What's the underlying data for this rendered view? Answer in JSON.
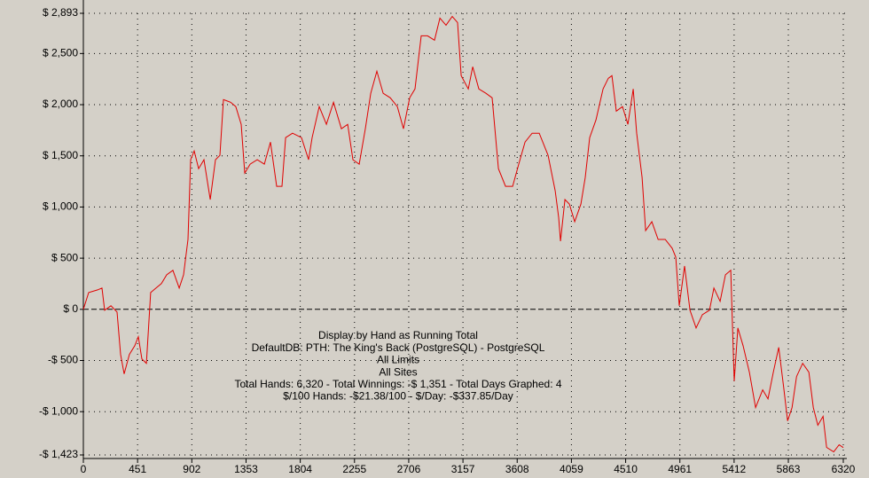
{
  "chart_data": {
    "type": "line",
    "color": "#e00000",
    "grid": true,
    "annotations": [
      "Display by Hand as Running Total",
      "DefaultDB: PTH: The King's Back (PostgreSQL) - PostgreSQL",
      "All Limits",
      "All Sites",
      "Total Hands: 6,320 - Total Winnings: -$ 1,351 - Total Days Graphed: 4",
      "$/100 Hands: -$21.38/100 - $/Day: -$337.85/Day"
    ],
    "xlim": [
      0,
      6320
    ],
    "xticks": [
      0,
      451,
      902,
      1353,
      1804,
      2255,
      2706,
      3157,
      3608,
      4059,
      4510,
      4961,
      5412,
      5863,
      6320
    ],
    "ylim": [
      -1423,
      2893
    ],
    "yticks": [
      {
        "value": -1423,
        "label": "-$ 1,423"
      },
      {
        "value": -1000,
        "label": "-$ 1,000"
      },
      {
        "value": -500,
        "label": "-$ 500"
      },
      {
        "value": 0,
        "label": "$ 0"
      },
      {
        "value": 500,
        "label": "$ 500"
      },
      {
        "value": 1000,
        "label": "$ 1,000"
      },
      {
        "value": 1500,
        "label": "$ 1,500"
      },
      {
        "value": 2000,
        "label": "$ 2,000"
      },
      {
        "value": 2500,
        "label": "$ 2,500"
      },
      {
        "value": 2893,
        "label": "$ 2,893"
      }
    ],
    "x": [
      0,
      44,
      118,
      155,
      177,
      229,
      280,
      310,
      339,
      383,
      428,
      457,
      487,
      524,
      560,
      605,
      649,
      693,
      745,
      797,
      833,
      870,
      892,
      922,
      959,
      1003,
      1055,
      1099,
      1136,
      1165,
      1224,
      1268,
      1313,
      1342,
      1387,
      1446,
      1505,
      1556,
      1608,
      1652,
      1682,
      1740,
      1814,
      1873,
      1903,
      1962,
      2021,
      2080,
      2146,
      2198,
      2242,
      2294,
      2345,
      2390,
      2441,
      2493,
      2552,
      2611,
      2662,
      2714,
      2758,
      2810,
      2862,
      2920,
      2965,
      3016,
      3068,
      3112,
      3142,
      3201,
      3238,
      3289,
      3348,
      3400,
      3452,
      3511,
      3570,
      3621,
      3673,
      3732,
      3791,
      3865,
      3924,
      3953,
      3968,
      4005,
      4042,
      4086,
      4138,
      4174,
      4211,
      4263,
      4322,
      4366,
      4396,
      4432,
      4484,
      4529,
      4573,
      4602,
      4647,
      4676,
      4728,
      4780,
      4839,
      4897,
      4927,
      4956,
      5000,
      5045,
      5096,
      5148,
      5207,
      5244,
      5296,
      5340,
      5384,
      5413,
      5443,
      5487,
      5539,
      5591,
      5650,
      5694,
      5738,
      5783,
      5827,
      5857,
      5894,
      5931,
      5982,
      6034,
      6071,
      6108,
      6152,
      6181,
      6240,
      6285,
      6320
    ],
    "values": [
      0,
      164,
      190,
      208,
      -9,
      35,
      -26,
      -441,
      -631,
      -441,
      -355,
      -268,
      -484,
      -528,
      164,
      208,
      251,
      337,
      381,
      208,
      337,
      683,
      1462,
      1548,
      1375,
      1462,
      1073,
      1462,
      1505,
      2050,
      2024,
      1981,
      1808,
      1332,
      1419,
      1462,
      1419,
      1635,
      1202,
      1202,
      1678,
      1721,
      1678,
      1462,
      1678,
      1981,
      1808,
      2024,
      1765,
      1808,
      1462,
      1419,
      1765,
      2111,
      2327,
      2111,
      2067,
      1981,
      1765,
      2067,
      2154,
      2673,
      2673,
      2630,
      2846,
      2777,
      2863,
      2803,
      2284,
      2154,
      2370,
      2154,
      2111,
      2067,
      1375,
      1202,
      1202,
      1419,
      1635,
      1721,
      1721,
      1505,
      1159,
      900,
      666,
      1073,
      1029,
      856,
      1029,
      1289,
      1678,
      1851,
      2154,
      2258,
      2284,
      1937,
      1981,
      1808,
      2154,
      1721,
      1289,
      770,
      856,
      683,
      683,
      597,
      510,
      35,
      424,
      -9,
      -182,
      -52,
      -9,
      208,
      78,
      337,
      381,
      -701,
      -182,
      -355,
      -614,
      -960,
      -787,
      -874,
      -614,
      -372,
      -787,
      -1090,
      -960,
      -657,
      -528,
      -614,
      -960,
      -1133,
      -1046,
      -1349,
      -1393,
      -1323,
      -1351
    ]
  }
}
